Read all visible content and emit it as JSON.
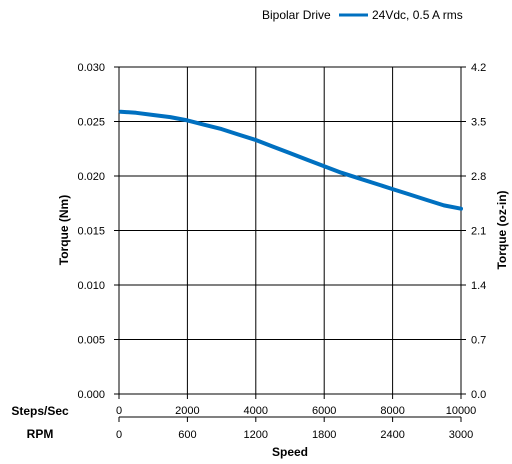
{
  "chart_data": {
    "type": "line",
    "legend": {
      "heading": "Bipolar Drive",
      "placement": "top-right",
      "entries": [
        "24Vdc, 0.5 A rms"
      ]
    },
    "series": [
      {
        "name": "24Vdc, 0.5 A rms",
        "color": "#0070C0",
        "x": [
          50,
          500,
          1000,
          1500,
          2000,
          2500,
          3000,
          3500,
          4000,
          4500,
          5000,
          5500,
          6000,
          6500,
          7000,
          7500,
          8000,
          8500,
          9000,
          9500,
          10000
        ],
        "y": [
          0.0259,
          0.0258,
          0.0256,
          0.0254,
          0.0251,
          0.0247,
          0.0243,
          0.0238,
          0.0233,
          0.0227,
          0.0221,
          0.0215,
          0.0209,
          0.0203,
          0.0198,
          0.0193,
          0.0188,
          0.0183,
          0.0178,
          0.0173,
          0.017
        ]
      }
    ],
    "xaxis": {
      "title": "Speed",
      "primary_label": "Steps/Sec",
      "secondary_label": "RPM",
      "range": [
        0,
        10000
      ],
      "primary_ticks": [
        "0",
        "2000",
        "4000",
        "6000",
        "8000",
        "10000"
      ],
      "secondary_ticks": [
        "0",
        "600",
        "1200",
        "1800",
        "2400",
        "3000"
      ]
    },
    "yaxis_left": {
      "title": "Torque (Nm)",
      "range": [
        0,
        0.03
      ],
      "ticks": [
        "0.000",
        "0.005",
        "0.010",
        "0.015",
        "0.020",
        "0.025",
        "0.030"
      ]
    },
    "yaxis_right": {
      "title": "Torque (oz-in)",
      "range": [
        0,
        4.2
      ],
      "ticks": [
        "0.0",
        "0.7",
        "1.4",
        "2.1",
        "2.8",
        "3.5",
        "4.2"
      ]
    },
    "grid": true
  }
}
